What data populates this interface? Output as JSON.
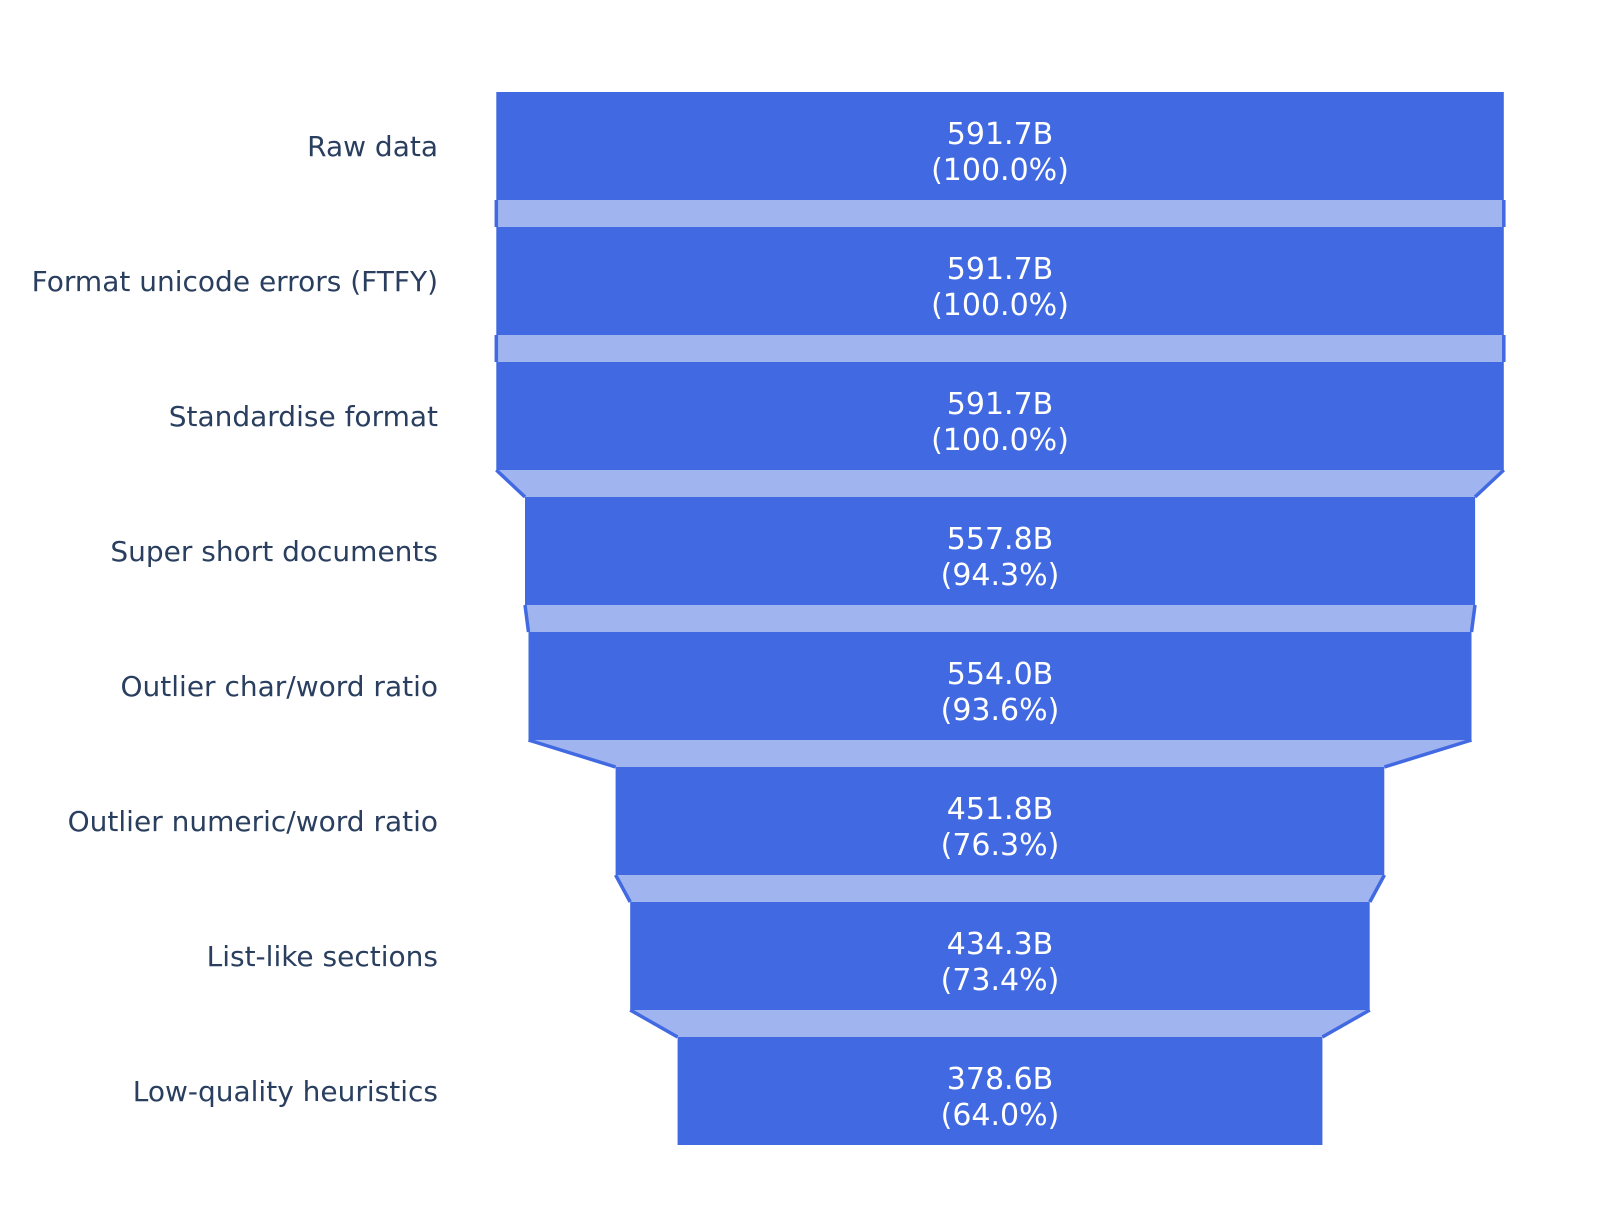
{
  "page": {
    "background_color": "#FFFFFF"
  },
  "chart_data": {
    "type": "funnel",
    "orientation": "horizontal-bars-vertical-funnel",
    "title": "",
    "xlabel": "",
    "ylabel": "",
    "legend": "none",
    "grid": false,
    "value_unit": "B",
    "categories": [
      "Raw data",
      "Format unicode errors (FTFY)",
      "Standardise format",
      "Super short documents",
      "Outlier char/word ratio",
      "Outlier numeric/word ratio",
      "List-like sections",
      "Low-quality heuristics"
    ],
    "values_billions": [
      591.7,
      591.7,
      591.7,
      557.8,
      554.0,
      451.8,
      434.3,
      378.6
    ],
    "percent_of_initial": [
      100.0,
      100.0,
      100.0,
      94.3,
      93.6,
      76.3,
      73.4,
      64.0
    ],
    "stages": [
      {
        "label": "Raw data",
        "value_label": "591.7B",
        "percent_label": "(100.0%)",
        "value": 591.7,
        "percent": 100.0
      },
      {
        "label": "Format unicode errors (FTFY)",
        "value_label": "591.7B",
        "percent_label": "(100.0%)",
        "value": 591.7,
        "percent": 100.0
      },
      {
        "label": "Standardise format",
        "value_label": "591.7B",
        "percent_label": "(100.0%)",
        "value": 591.7,
        "percent": 100.0
      },
      {
        "label": "Super short documents",
        "value_label": "557.8B",
        "percent_label": "(94.3%)",
        "value": 557.8,
        "percent": 94.3
      },
      {
        "label": "Outlier char/word ratio",
        "value_label": "554.0B",
        "percent_label": "(93.6%)",
        "value": 554.0,
        "percent": 93.6
      },
      {
        "label": "Outlier numeric/word ratio",
        "value_label": "451.8B",
        "percent_label": "(76.3%)",
        "value": 451.8,
        "percent": 76.3
      },
      {
        "label": "List-like sections",
        "value_label": "434.3B",
        "percent_label": "(73.4%)",
        "value": 434.3,
        "percent": 73.4
      },
      {
        "label": "Low-quality heuristics",
        "value_label": "378.6B",
        "percent_label": "(64.0%)",
        "value": 378.6,
        "percent": 64.0
      }
    ],
    "colors": {
      "bar_fill": "#4169E1",
      "connector_fill": "rgba(65,105,225,0.5)",
      "connector_line": "#4169E1",
      "inside_text": "#FFFFFF",
      "category_text": "#2A3F5F"
    },
    "layout_hints": {
      "labels_align": "right",
      "values_inside_bars": true,
      "value_format": "value newline (percent of initial)"
    }
  }
}
